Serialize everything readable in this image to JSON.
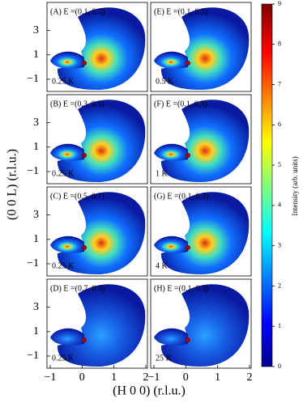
{
  "chart_data": {
    "type": "heatmap-grid",
    "xlabel": "(H 0 0) (r.l.u.)",
    "ylabel": "(0 0 L) (r.l.u.)",
    "xlim": [
      -1.1,
      2.05
    ],
    "xticks": [
      {
        "value": -1,
        "label": "−1"
      },
      0,
      1,
      2
    ],
    "ylim": [
      -2.0,
      5.3
    ],
    "yticks": [
      {
        "value": -1,
        "label": "−1"
      },
      1,
      3
    ],
    "panels": [
      {
        "title": "(A) E =(0.1, 0.3)",
        "temperature": "0.25 K"
      },
      {
        "title": "(E) E =(0.1, 0.3)",
        "temperature": "0.5 K"
      },
      {
        "title": "(B) E =(0.3, 0.5)",
        "temperature": "0.25 K"
      },
      {
        "title": "(F) E =(0.1, 0.3)",
        "temperature": "1 K"
      },
      {
        "title": "(C) E =(0.5, 0.7)",
        "temperature": "0.25 K"
      },
      {
        "title": "(G) E =(0.1, 0.3)",
        "temperature": "4 K"
      },
      {
        "title": "(D) E =(0.7, 0.9)",
        "temperature": "0.25 K"
      },
      {
        "title": "(H) E =(0.1, 0.3)",
        "temperature": "25 K"
      }
    ],
    "colorbar": {
      "label": "Intensity (arb. units)",
      "lim": [
        0,
        9
      ],
      "ticks": [
        0,
        1,
        2,
        3,
        4,
        5,
        6,
        7,
        8,
        9
      ]
    }
  }
}
